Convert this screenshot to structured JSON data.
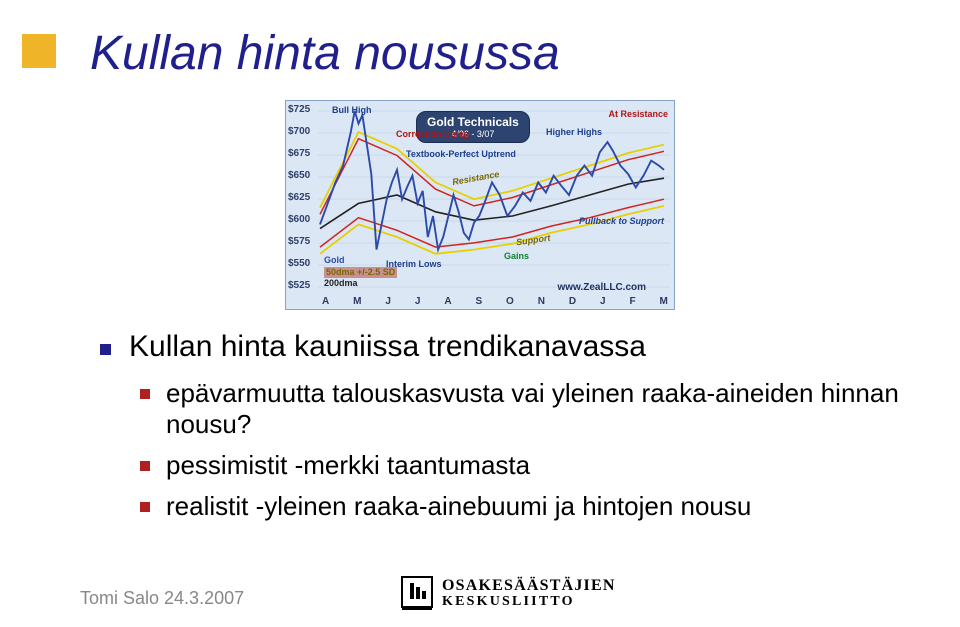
{
  "title": "Kullan hinta nousussa",
  "chart": {
    "title": "Gold Technicals",
    "title_sub": "4/06 - 3/07",
    "ylabels": [
      "$725",
      "$700",
      "$675",
      "$650",
      "$625",
      "$600",
      "$575",
      "$550",
      "$525"
    ],
    "xlabels": [
      "A",
      "M",
      "J",
      "J",
      "A",
      "S",
      "O",
      "N",
      "D",
      "J",
      "F",
      "M"
    ],
    "ylim": [
      525,
      725
    ],
    "price_color": "#2c4aa8",
    "sma_color": "#222222",
    "band1_color": "#e6d000",
    "band2_color": "#d0241e",
    "background": "#dbe7f5",
    "annotations": {
      "bull_high": "Bull High",
      "correction_upleg": "Correction Upleg",
      "textbook": "Textbook-Perfect Uptrend",
      "higher_highs": "Higher Highs",
      "at_resistance": "At Resistance",
      "pullback": "Pullback to Support",
      "interim_lows": "Interim Lows",
      "resistance": "Resistance",
      "support": "Support",
      "gains": "Gains"
    },
    "legend": {
      "gold": "Gold",
      "bands": "50dma +/-2.5 SD",
      "ma": "200dma"
    },
    "watermark": "www.ZealLLC.com",
    "price_series": [
      [
        0,
        590
      ],
      [
        6,
        615
      ],
      [
        12,
        640
      ],
      [
        18,
        660
      ],
      [
        24,
        700
      ],
      [
        27,
        725
      ],
      [
        30,
        710
      ],
      [
        33,
        720
      ],
      [
        36,
        690
      ],
      [
        40,
        650
      ],
      [
        44,
        560
      ],
      [
        48,
        590
      ],
      [
        52,
        620
      ],
      [
        56,
        640
      ],
      [
        60,
        655
      ],
      [
        64,
        620
      ],
      [
        68,
        635
      ],
      [
        72,
        648
      ],
      [
        76,
        615
      ],
      [
        80,
        630
      ],
      [
        84,
        575
      ],
      [
        88,
        600
      ],
      [
        92,
        560
      ],
      [
        96,
        575
      ],
      [
        100,
        600
      ],
      [
        104,
        625
      ],
      [
        108,
        605
      ],
      [
        112,
        580
      ],
      [
        116,
        572
      ],
      [
        120,
        592
      ],
      [
        124,
        600
      ],
      [
        128,
        615
      ],
      [
        134,
        640
      ],
      [
        140,
        625
      ],
      [
        146,
        600
      ],
      [
        152,
        612
      ],
      [
        158,
        628
      ],
      [
        164,
        618
      ],
      [
        170,
        640
      ],
      [
        176,
        628
      ],
      [
        182,
        648
      ],
      [
        188,
        636
      ],
      [
        194,
        625
      ],
      [
        200,
        648
      ],
      [
        206,
        660
      ],
      [
        212,
        648
      ],
      [
        218,
        676
      ],
      [
        224,
        688
      ],
      [
        228,
        678
      ],
      [
        234,
        660
      ],
      [
        240,
        650
      ],
      [
        246,
        634
      ],
      [
        252,
        648
      ],
      [
        258,
        666
      ],
      [
        264,
        660
      ],
      [
        268,
        655
      ]
    ],
    "sma_series": [
      [
        0,
        585
      ],
      [
        30,
        615
      ],
      [
        60,
        625
      ],
      [
        90,
        605
      ],
      [
        120,
        595
      ],
      [
        150,
        600
      ],
      [
        180,
        612
      ],
      [
        210,
        625
      ],
      [
        240,
        638
      ],
      [
        268,
        645
      ]
    ],
    "band_upper": [
      [
        0,
        610
      ],
      [
        30,
        700
      ],
      [
        60,
        680
      ],
      [
        90,
        640
      ],
      [
        120,
        620
      ],
      [
        150,
        630
      ],
      [
        180,
        645
      ],
      [
        210,
        660
      ],
      [
        240,
        675
      ],
      [
        268,
        685
      ]
    ],
    "band_lower": [
      [
        0,
        555
      ],
      [
        30,
        590
      ],
      [
        60,
        575
      ],
      [
        90,
        555
      ],
      [
        120,
        560
      ],
      [
        150,
        567
      ],
      [
        180,
        580
      ],
      [
        210,
        590
      ],
      [
        240,
        602
      ],
      [
        268,
        612
      ]
    ]
  },
  "bullets": {
    "b1": "Kullan hinta kauniissa trendikanavassa",
    "b2": "epävarmuutta talouskasvusta vai yleinen raaka-aineiden hinnan nousu?",
    "b3": "pessimistit -merkki taantumasta",
    "b4": "realistit -yleinen raaka-ainebuumi ja hintojen nousu"
  },
  "footer": {
    "author": "Tomi Salo 24.3.2007",
    "logo_line1": "OSAKESÄÄSTÄJIEN",
    "logo_line2": "KESKUSLIITTO"
  }
}
